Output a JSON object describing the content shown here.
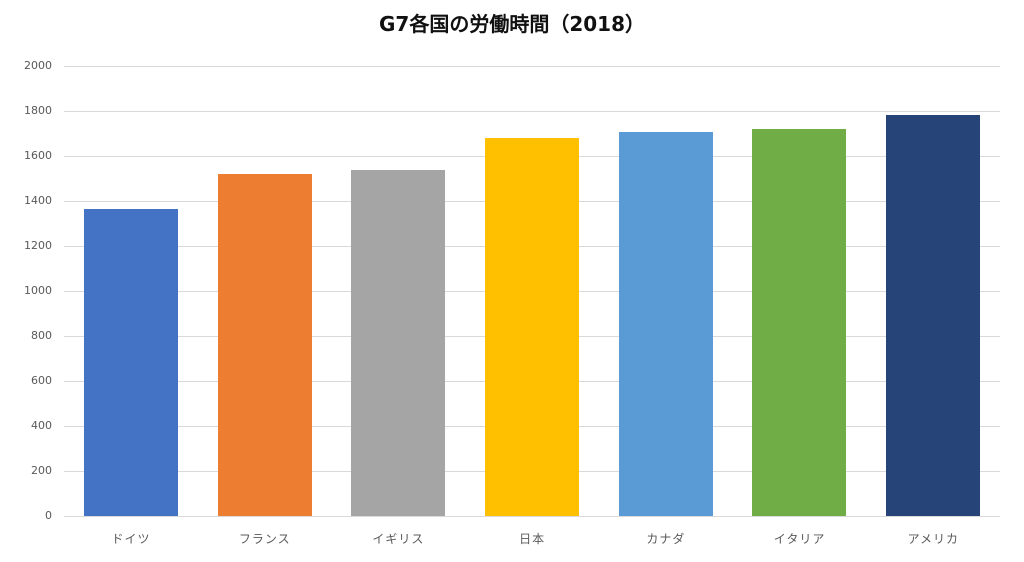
{
  "chart_data": {
    "type": "bar",
    "title": "G7各国の労働時間（2018）",
    "xlabel": "",
    "ylabel": "",
    "ylim": [
      0,
      2000
    ],
    "yticks": [
      0,
      200,
      400,
      600,
      800,
      1000,
      1200,
      1400,
      1600,
      1800,
      2000
    ],
    "grid": true,
    "legend": null,
    "categories": [
      "ドイツ",
      "フランス",
      "イギリス",
      "日本",
      "カナダ",
      "イタリア",
      "アメリカ"
    ],
    "values": [
      1363,
      1520,
      1538,
      1680,
      1708,
      1718,
      1782
    ],
    "colors": [
      "#4472c4",
      "#ed7d31",
      "#a5a5a5",
      "#ffc000",
      "#5b9bd5",
      "#70ad47",
      "#264478"
    ]
  }
}
